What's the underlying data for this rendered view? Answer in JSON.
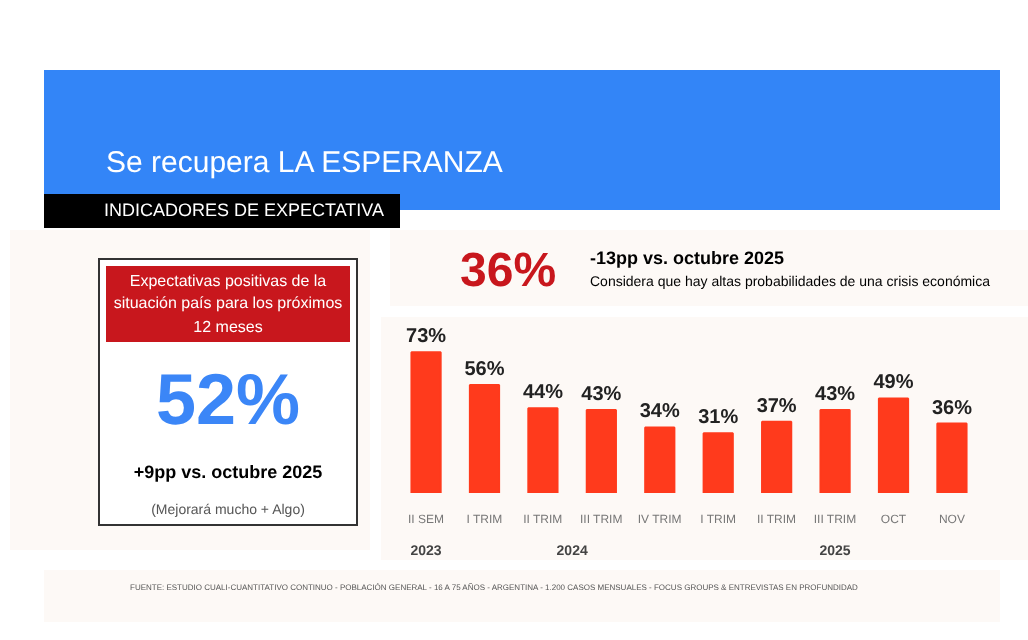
{
  "chart_data": {
    "type": "bar",
    "title": "Se recupera LA ESPERANZA",
    "subtitle": "INDICADORES DE EXPECTATIVA",
    "categories": [
      "II SEM",
      "I TRIM",
      "II TRIM",
      "III TRIM",
      "IV TRIM",
      "I TRIM",
      "II TRIM",
      "III TRIM",
      "OCT",
      "NOV"
    ],
    "values": [
      73,
      56,
      44,
      43,
      34,
      31,
      37,
      43,
      49,
      36
    ],
    "color": "#ff3a1c",
    "value_labels": [
      "73%",
      "56%",
      "44%",
      "43%",
      "34%",
      "31%",
      "37%",
      "43%",
      "49%",
      "36%"
    ],
    "annotations": [
      "2023",
      "2024",
      "2025",
      "36%",
      "-13pp vs. octubre 2025",
      "Considera que hay altas probabilidades de una crisis económica",
      "Expectativas positivas de la situación país para los próximos 12 meses",
      "52%",
      "+9pp vs. octubre 2025",
      "(Mejorará mucho + Algo)",
      "FUENTE: ESTUDIO CUALI-CUANTITATIVO CONTINUO - POBLACIÓN GENERAL - 16 A 75 AÑOS - ARGENTINA - 1.200 CASOS MENSUALES - FOCUS GROUPS & ENTREVISTAS EN PROFUNDIDAD"
    ]
  }
}
